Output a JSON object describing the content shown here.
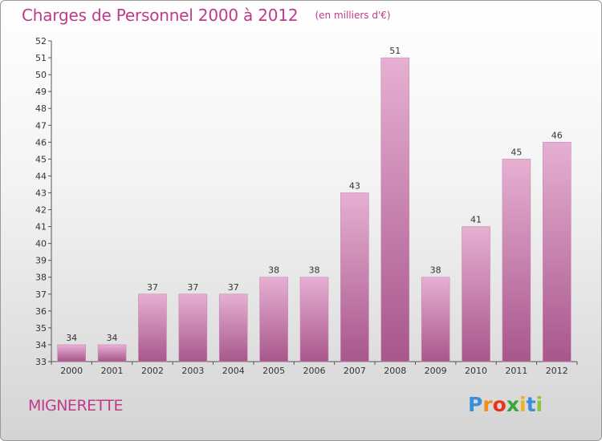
{
  "header": {
    "title": "Charges de Personnel 2000 à 2012",
    "subtitle": "(en milliers d'€)"
  },
  "footer": {
    "commune": "MIGNERETTE",
    "logo_text": "Proxiti",
    "logo_letters": [
      "P",
      "r",
      "o",
      "x",
      "i",
      "t",
      "i"
    ],
    "logo_colors": [
      "#3a8fd8",
      "#f28c1a",
      "#e8331f",
      "#3aa53a",
      "#f2b21a",
      "#3a8fd8",
      "#8cc63f"
    ]
  },
  "colors": {
    "bar_top": "#e6b0d2",
    "bar_bottom": "#a8568b",
    "title": "#c03a8a"
  },
  "chart_data": {
    "type": "bar",
    "title": "Charges de Personnel 2000 à 2012",
    "subtitle": "(en milliers d'€)",
    "categories": [
      "2000",
      "2001",
      "2002",
      "2003",
      "2004",
      "2005",
      "2006",
      "2007",
      "2008",
      "2009",
      "2010",
      "2011",
      "2012"
    ],
    "values": [
      34,
      34,
      37,
      37,
      37,
      38,
      38,
      43,
      51,
      38,
      41,
      45,
      46
    ],
    "ylim": [
      33,
      52
    ],
    "yticks": [
      33,
      34,
      35,
      36,
      37,
      38,
      39,
      40,
      41,
      42,
      43,
      44,
      45,
      46,
      47,
      48,
      49,
      50,
      51,
      52
    ],
    "grid": false,
    "data_labels": true
  }
}
